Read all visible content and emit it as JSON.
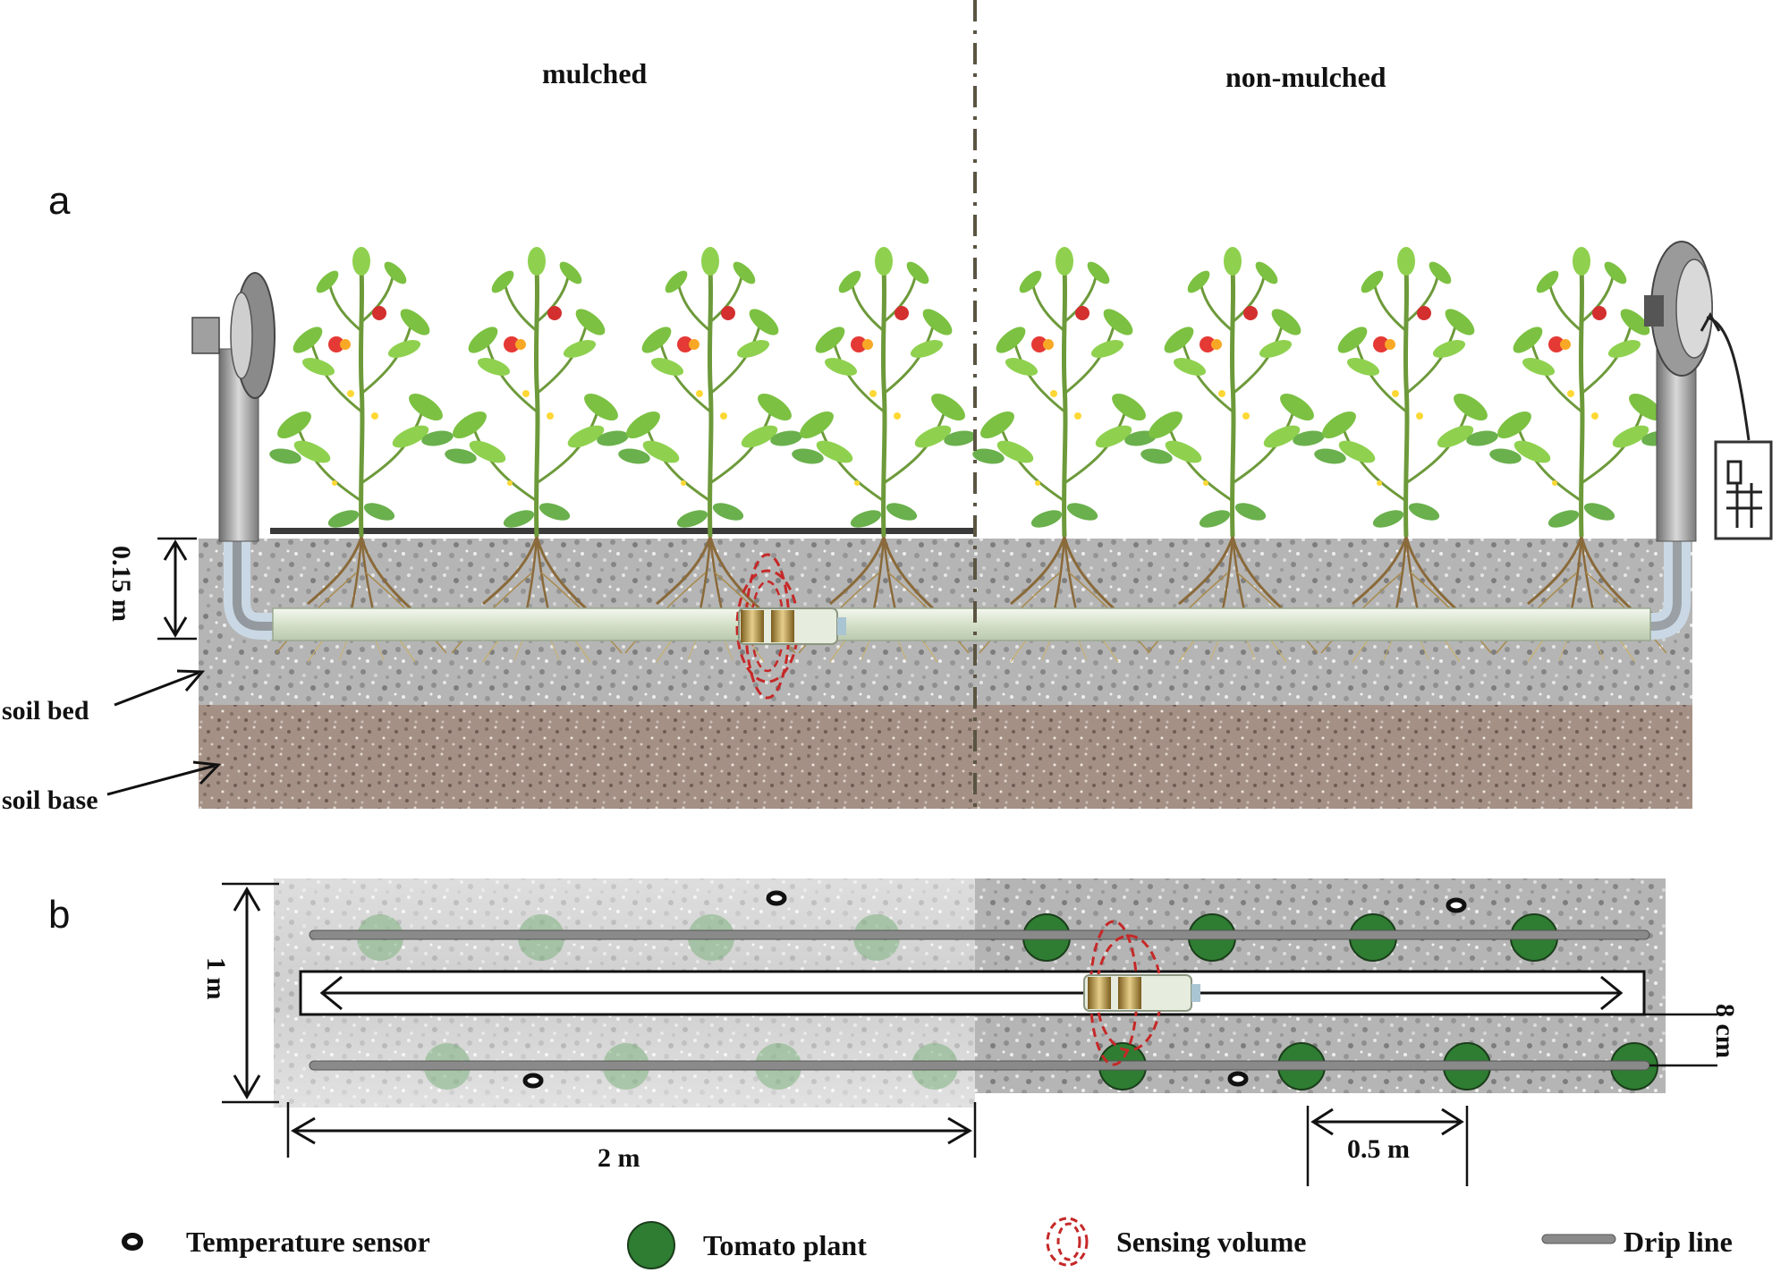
{
  "panel_a": {
    "panel_letter": "a",
    "left_label": "mulched",
    "right_label": "non-mulched",
    "depth_label": "0.15 m",
    "soil_bed_label": "soil bed",
    "soil_base_label": "soil base"
  },
  "panel_b": {
    "panel_letter": "b",
    "width_label": "1 m",
    "length_label": "2 m",
    "spacing_label": "0.5 m",
    "offset_label": "8 cm"
  },
  "legend": {
    "temperature_sensor": "Temperature sensor",
    "tomato_plant": "Tomato plant",
    "sensing_volume": "Sensing volume",
    "drip_line": "Drip line"
  },
  "colors": {
    "plant_green": "#6ab04c",
    "dark_green": "#2e7d32",
    "soil_bed": "#b8b8b8",
    "soil_base": "#9c8a80",
    "sensing_red": "#c62828"
  }
}
